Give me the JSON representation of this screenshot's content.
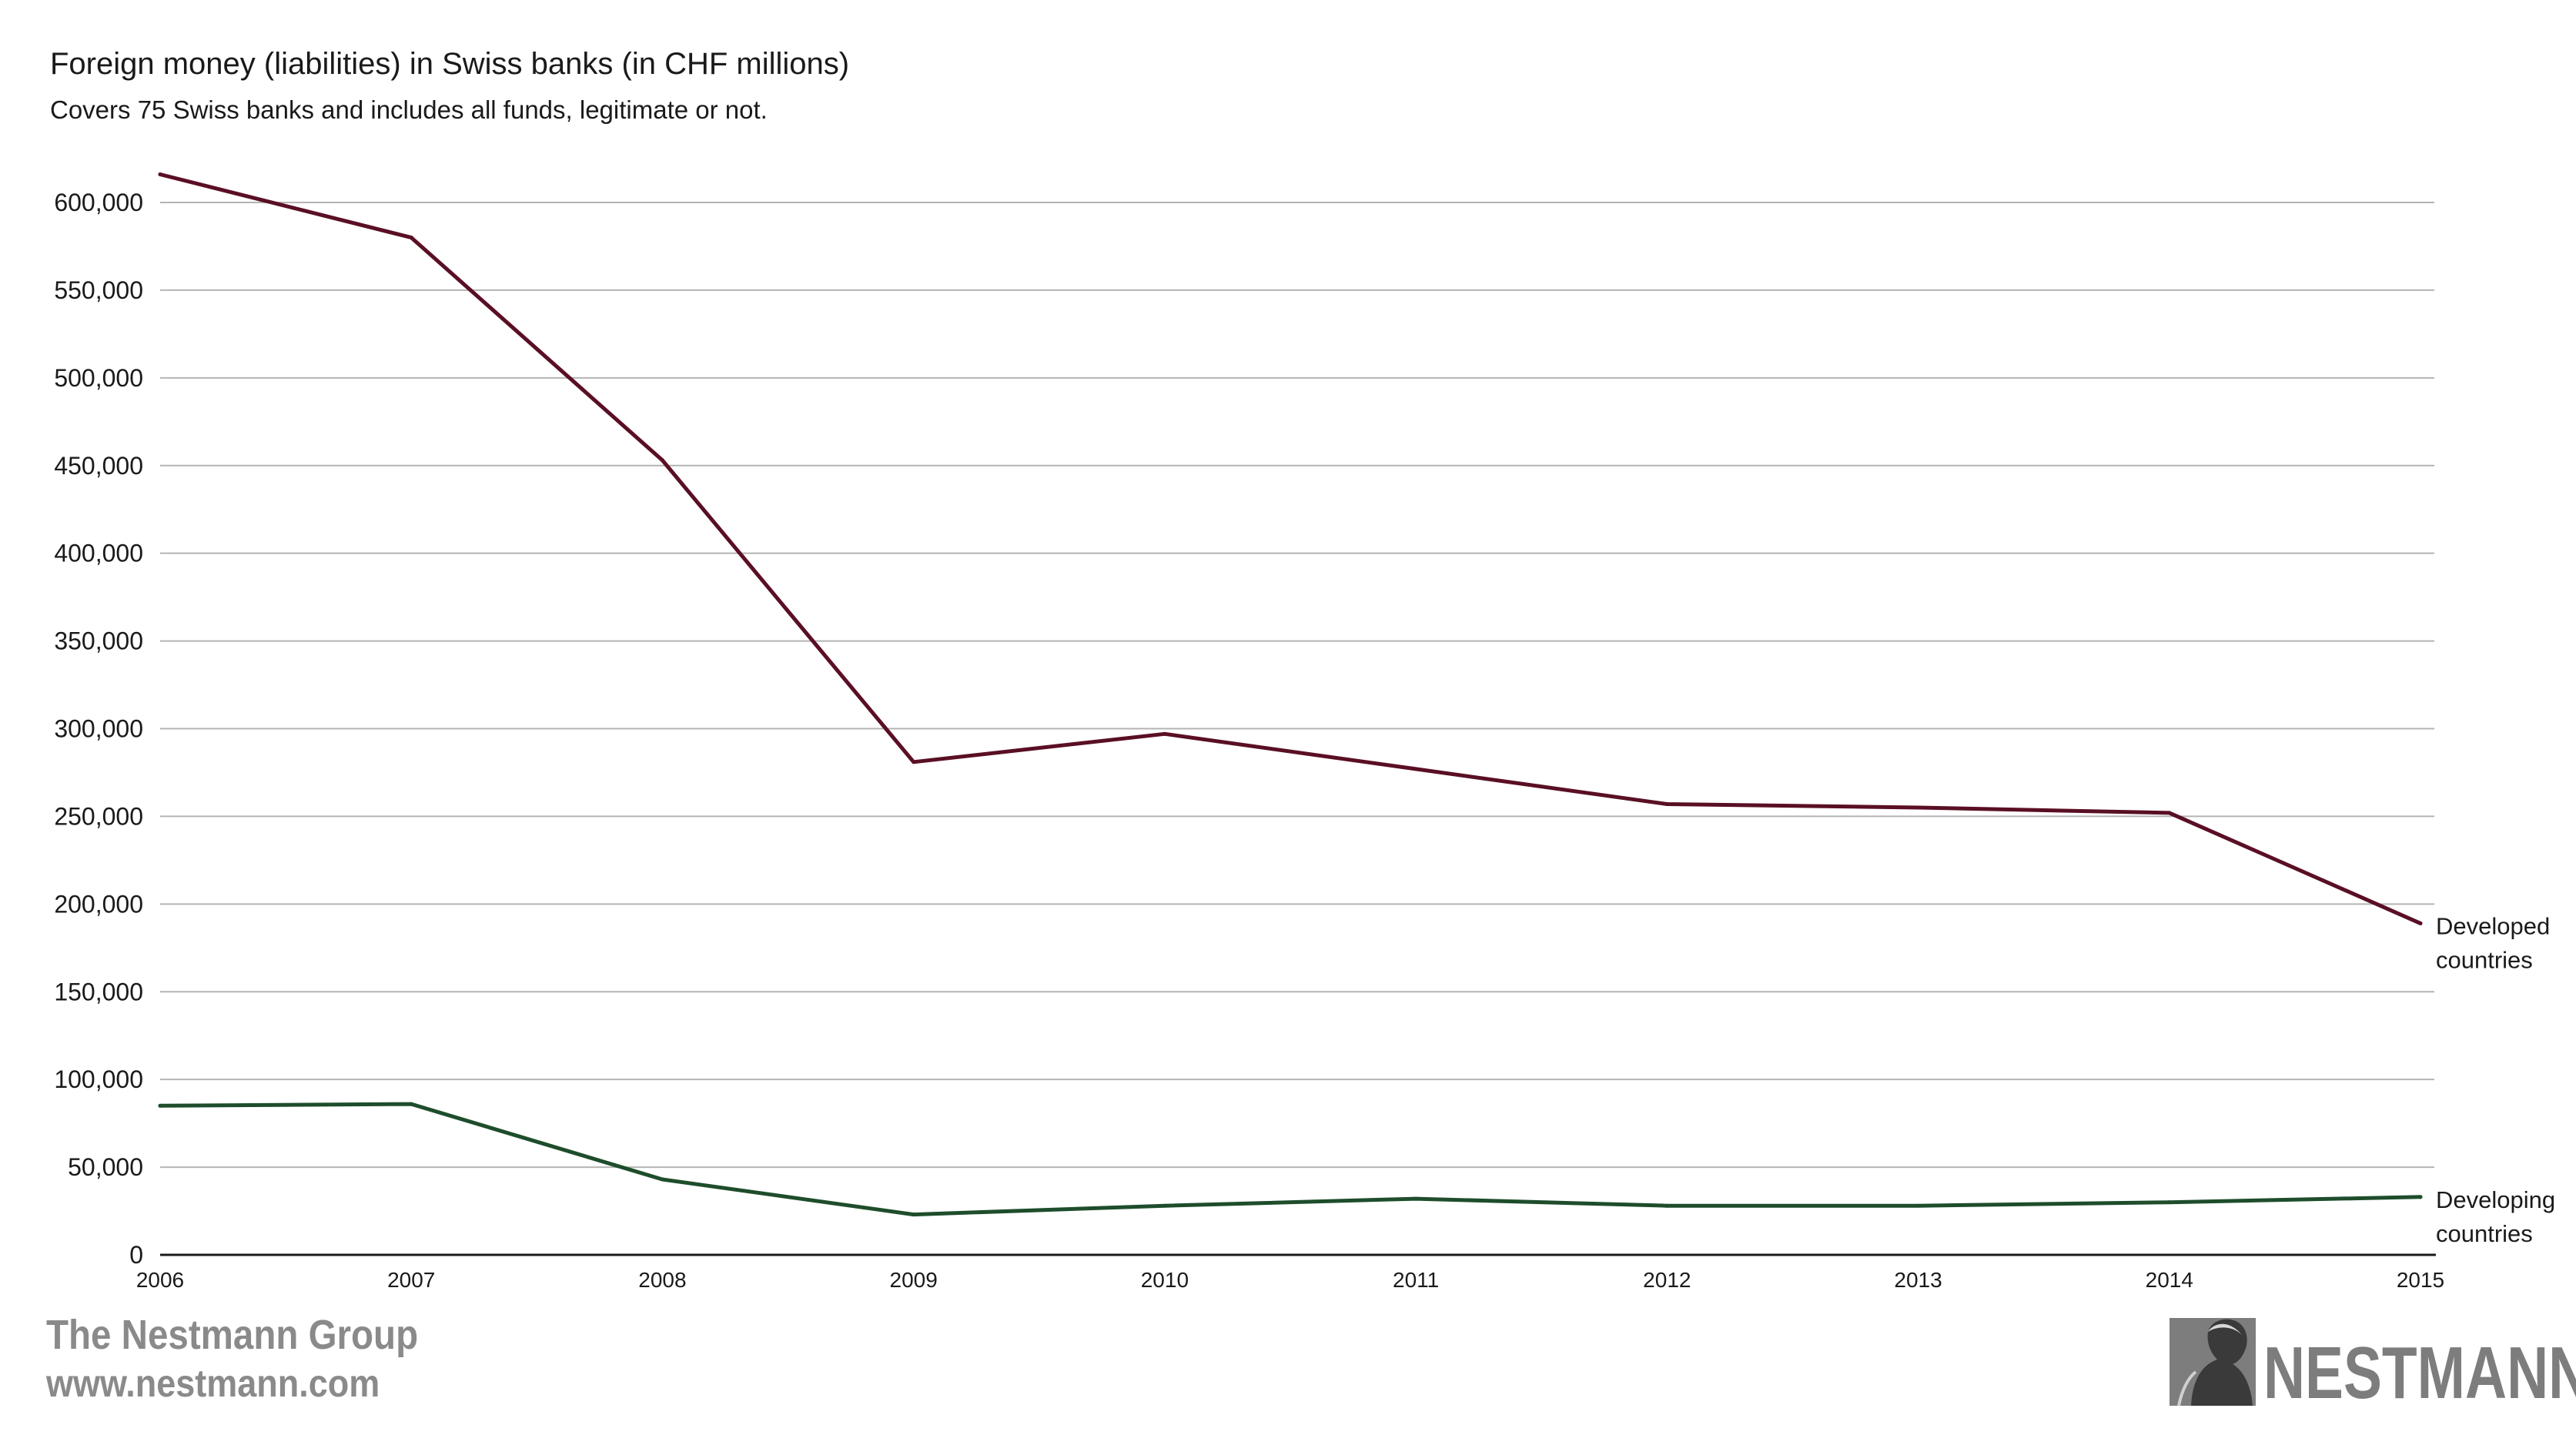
{
  "chart_data": {
    "type": "line",
    "title": "Foreign money (liabilities) in Swiss banks (in CHF millions)",
    "subtitle": "Covers 75 Swiss banks and includes all funds, legitimate or not.",
    "x": [
      "2006",
      "2007",
      "2008",
      "2009",
      "2010",
      "2011",
      "2012",
      "2013",
      "2014",
      "2015"
    ],
    "ylim": [
      0,
      650000
    ],
    "yticks": [
      0,
      50000,
      100000,
      150000,
      200000,
      250000,
      300000,
      350000,
      400000,
      450000,
      500000,
      550000,
      600000
    ],
    "ytick_labels": [
      "0",
      "50,000",
      "100,000",
      "150,000",
      "200,000",
      "250,000",
      "300,000",
      "350,000",
      "400,000",
      "450,000",
      "500,000",
      "550,000",
      "600,000"
    ],
    "grid": true,
    "legend": "direct-labels-right",
    "series": [
      {
        "name": "Developed countries",
        "label_lines": [
          "Developed",
          "countries"
        ],
        "color": "#5a0f24",
        "values": [
          616000,
          580000,
          453000,
          281000,
          297000,
          277000,
          257000,
          255000,
          252000,
          189000
        ]
      },
      {
        "name": "Developing countries",
        "label_lines": [
          "Developing",
          "countries"
        ],
        "color": "#1e4d2b",
        "values": [
          85000,
          86000,
          43000,
          23000,
          28000,
          32000,
          28000,
          28000,
          30000,
          33000
        ]
      }
    ]
  },
  "footer": {
    "brand_name": "The Nestmann Group",
    "website": "www.nestmann.com",
    "logo_word": "NESTMANN",
    "logo_icon": "portrait-silhouette-icon",
    "brand_color": "#8a8a8a"
  }
}
